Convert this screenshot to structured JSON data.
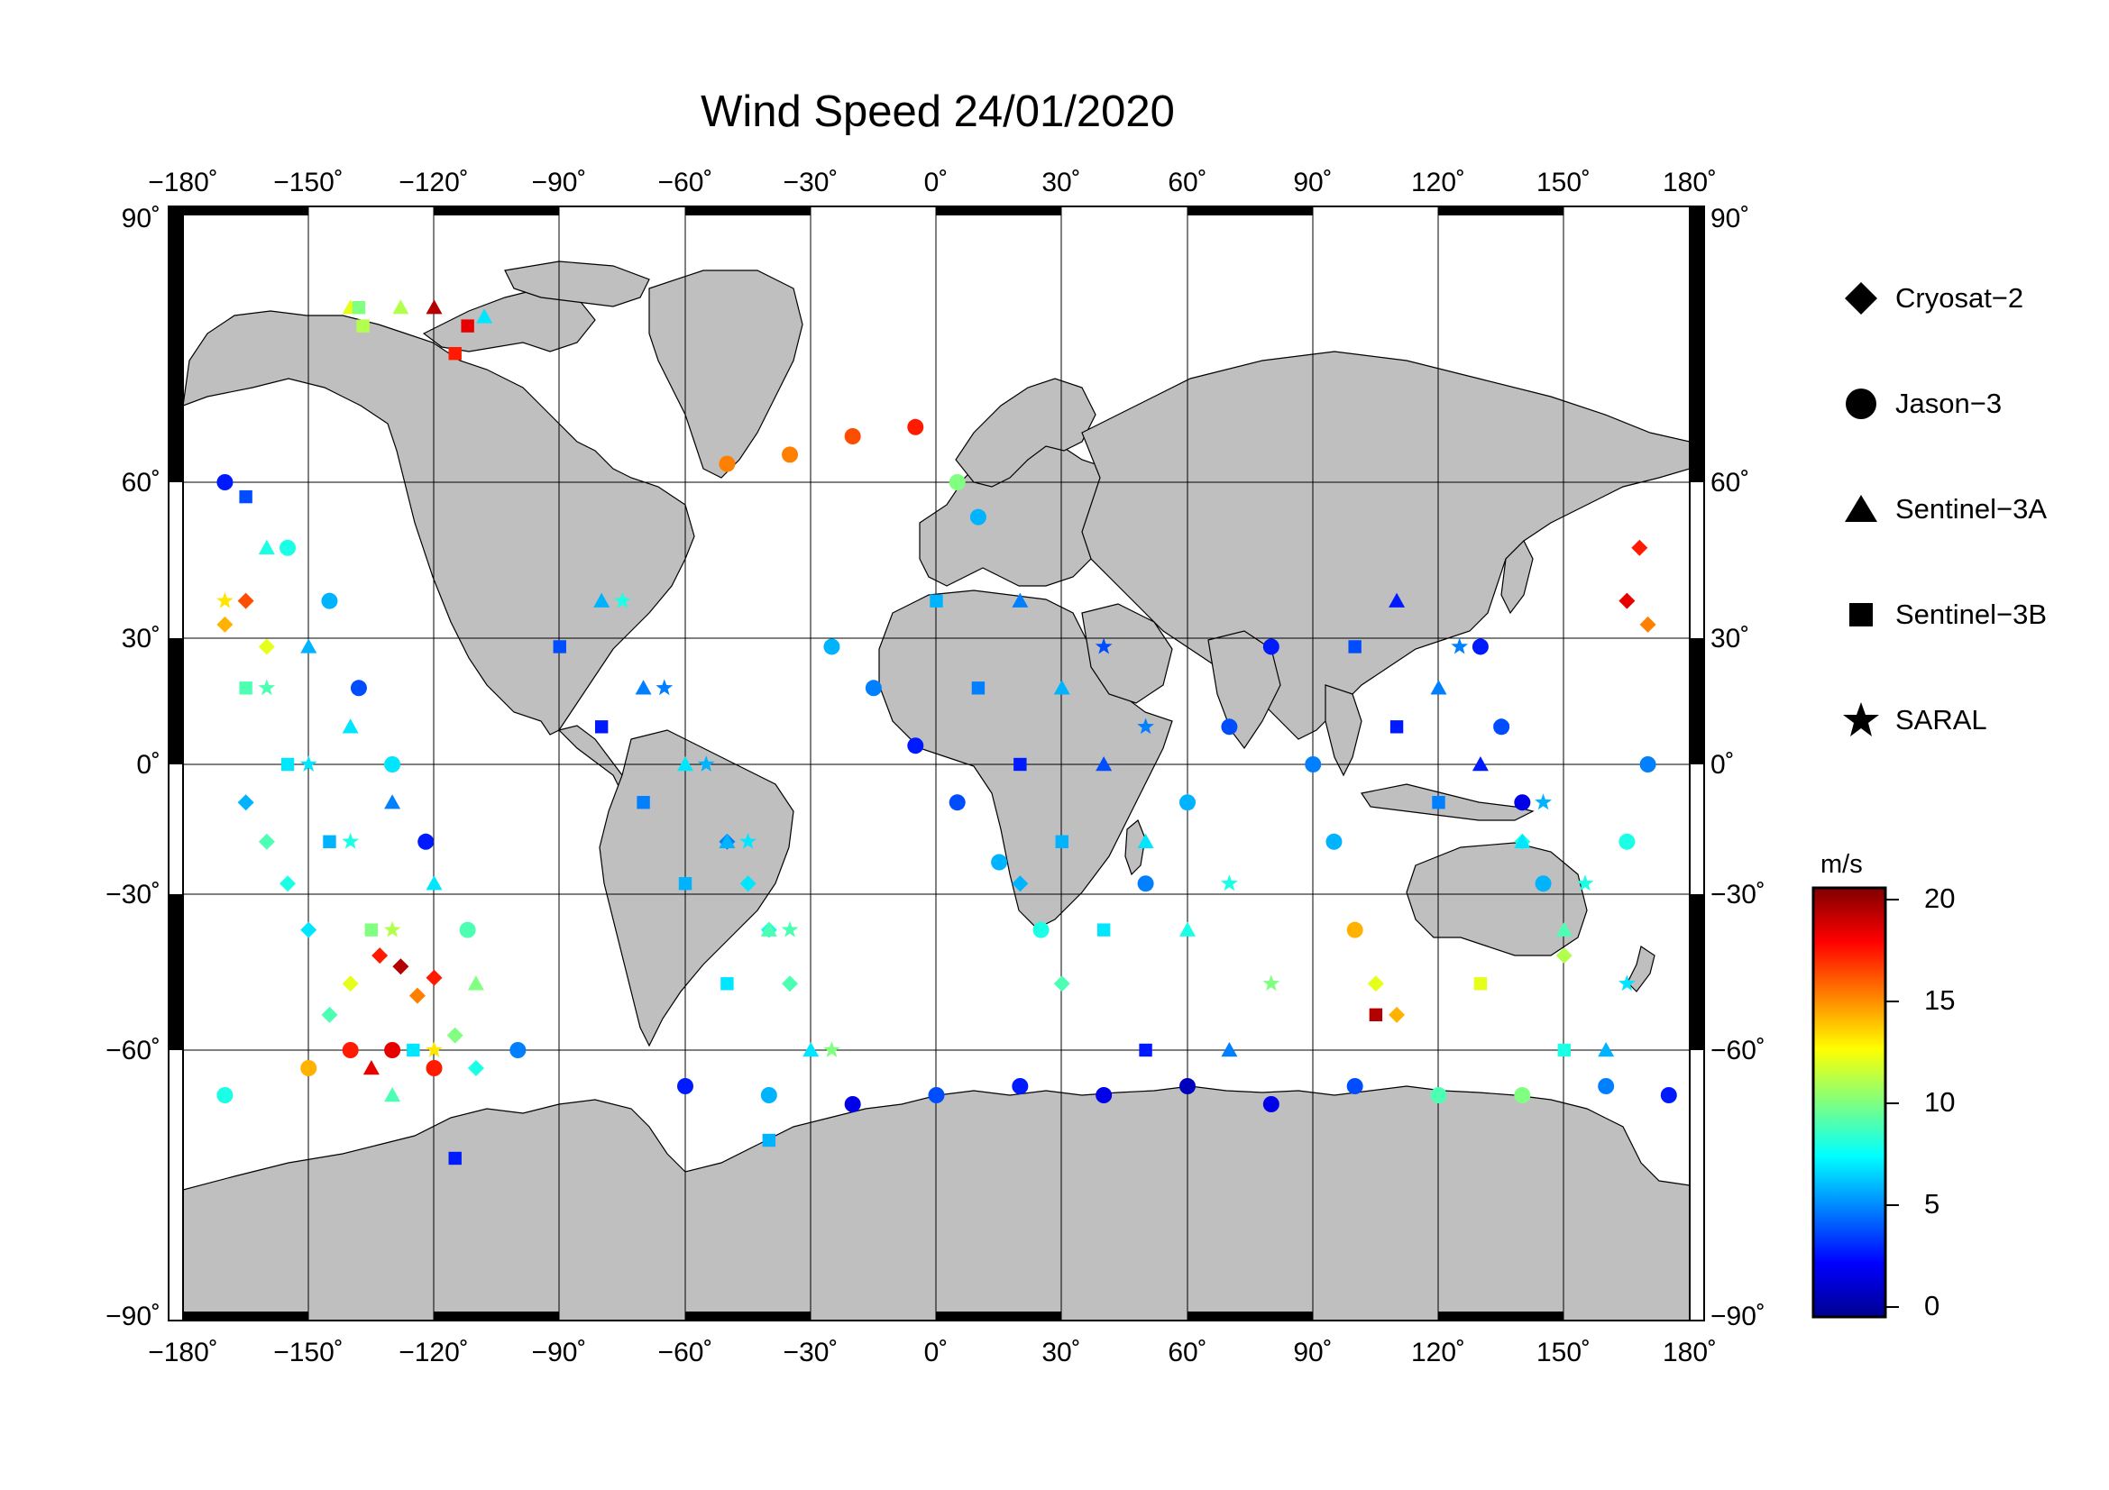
{
  "map": {
    "title": "Wind Speed 24/01/2020",
    "lon_ticks": [
      "−180˚",
      "−150˚",
      "−120˚",
      "−90˚",
      "−60˚",
      "−30˚",
      "0˚",
      "30˚",
      "60˚",
      "90˚",
      "120˚",
      "150˚",
      "180˚"
    ],
    "lat_ticks_left": [
      "90˚",
      "60˚",
      "30˚",
      "0˚",
      "−30˚",
      "−60˚",
      "−90˚"
    ],
    "lat_ticks_right": [
      "90˚",
      "60˚",
      "30˚",
      "0˚",
      "−30˚",
      "−60˚",
      "−90˚"
    ],
    "land_color": "#bfbfbf",
    "ocean_color": "#ffffff",
    "lon_range": [
      -180,
      180
    ],
    "lat_range": [
      -90,
      90
    ]
  },
  "legend": {
    "items": [
      {
        "label": "Cryosat−2",
        "marker": "diamond-icon"
      },
      {
        "label": "Jason−3",
        "marker": "circle-icon"
      },
      {
        "label": "Sentinel−3A",
        "marker": "triangle-icon"
      },
      {
        "label": "Sentinel−3B",
        "marker": "square-icon"
      },
      {
        "label": "SARAL",
        "marker": "star-icon"
      }
    ]
  },
  "colorbar": {
    "unit": "m/s",
    "ticks": [
      "20",
      "15",
      "10",
      "5",
      "0"
    ],
    "range": [
      0,
      20
    ],
    "colormap": [
      "#00008f",
      "#0000ff",
      "#00ffff",
      "#ffff00",
      "#ff0000",
      "#800000"
    ]
  },
  "chart_data": {
    "type": "scatter",
    "title": "Wind Speed 24/01/2020",
    "xlabel": "",
    "ylabel": "",
    "xlim": [
      -180,
      180
    ],
    "ylim": [
      -90,
      90
    ],
    "value_unit": "m/s",
    "grid": true,
    "legend_position": "right",
    "series": [
      {
        "name": "Cryosat−2",
        "marker": "diamond",
        "points": [
          [
            -133,
            -45,
            17
          ],
          [
            -128,
            -47,
            19
          ],
          [
            -124,
            -52,
            15
          ],
          [
            -120,
            -49,
            17
          ],
          [
            -115,
            -58,
            10
          ],
          [
            -110,
            -62,
            8
          ],
          [
            -140,
            -50,
            12
          ],
          [
            -145,
            -55,
            9
          ],
          [
            -150,
            -40,
            7
          ],
          [
            -155,
            -30,
            8
          ],
          [
            -160,
            -20,
            9
          ],
          [
            -165,
            -10,
            6
          ],
          [
            -170,
            35,
            14
          ],
          [
            -165,
            40,
            16
          ],
          [
            -160,
            30,
            12
          ],
          [
            165,
            40,
            18
          ],
          [
            168,
            50,
            17
          ],
          [
            170,
            35,
            15
          ],
          [
            -50,
            -20,
            5
          ],
          [
            -45,
            -30,
            7
          ],
          [
            -40,
            -40,
            8
          ],
          [
            -35,
            -50,
            9
          ],
          [
            20,
            -30,
            6
          ],
          [
            25,
            -40,
            8
          ],
          [
            30,
            -50,
            9
          ],
          [
            100,
            -40,
            7
          ],
          [
            105,
            -50,
            12
          ],
          [
            110,
            -55,
            14
          ],
          [
            140,
            -20,
            8
          ],
          [
            145,
            -30,
            10
          ],
          [
            150,
            -45,
            11
          ]
        ]
      },
      {
        "name": "Jason−3",
        "marker": "circle",
        "points": [
          [
            -170,
            60,
            3
          ],
          [
            -155,
            50,
            8
          ],
          [
            -145,
            40,
            6
          ],
          [
            -138,
            20,
            4
          ],
          [
            -130,
            0,
            7
          ],
          [
            -122,
            -20,
            3
          ],
          [
            -112,
            -40,
            9
          ],
          [
            -100,
            -60,
            5
          ],
          [
            -60,
            -64,
            3
          ],
          [
            -40,
            -65,
            6
          ],
          [
            -20,
            -66,
            2
          ],
          [
            0,
            -65,
            4
          ],
          [
            20,
            -64,
            3
          ],
          [
            40,
            -65,
            2
          ],
          [
            60,
            -64,
            1
          ],
          [
            80,
            -66,
            2
          ],
          [
            100,
            -64,
            4
          ],
          [
            120,
            -65,
            9
          ],
          [
            140,
            -65,
            10
          ],
          [
            160,
            -64,
            5
          ],
          [
            175,
            -65,
            3
          ],
          [
            -170,
            -65,
            8
          ],
          [
            -150,
            -62,
            14
          ],
          [
            -140,
            -60,
            17
          ],
          [
            -130,
            -60,
            18
          ],
          [
            -120,
            -62,
            17
          ],
          [
            -50,
            62,
            15
          ],
          [
            -35,
            63,
            15
          ],
          [
            -20,
            65,
            16
          ],
          [
            -5,
            66,
            17
          ],
          [
            5,
            60,
            10
          ],
          [
            10,
            55,
            6
          ],
          [
            -25,
            30,
            6
          ],
          [
            -15,
            20,
            5
          ],
          [
            -5,
            5,
            3
          ],
          [
            5,
            -10,
            4
          ],
          [
            15,
            -25,
            6
          ],
          [
            25,
            -40,
            8
          ],
          [
            50,
            -30,
            5
          ],
          [
            60,
            -10,
            6
          ],
          [
            70,
            10,
            4
          ],
          [
            80,
            30,
            3
          ],
          [
            90,
            0,
            5
          ],
          [
            95,
            -20,
            6
          ],
          [
            100,
            -40,
            14
          ],
          [
            130,
            30,
            3
          ],
          [
            135,
            10,
            4
          ],
          [
            140,
            -10,
            2
          ],
          [
            145,
            -30,
            6
          ],
          [
            165,
            -20,
            8
          ],
          [
            170,
            0,
            5
          ]
        ]
      },
      {
        "name": "Sentinel−3A",
        "marker": "triangle",
        "points": [
          [
            -140,
            79,
            12
          ],
          [
            -128,
            79,
            11
          ],
          [
            -120,
            79,
            19
          ],
          [
            -108,
            78,
            7
          ],
          [
            -135,
            -62,
            18
          ],
          [
            -130,
            -65,
            9
          ],
          [
            -160,
            50,
            8
          ],
          [
            -150,
            30,
            6
          ],
          [
            -140,
            10,
            7
          ],
          [
            -130,
            -10,
            5
          ],
          [
            -120,
            -30,
            7
          ],
          [
            -110,
            -50,
            10
          ],
          [
            -80,
            40,
            6
          ],
          [
            -70,
            20,
            5
          ],
          [
            -60,
            0,
            7
          ],
          [
            -50,
            -20,
            6
          ],
          [
            -40,
            -40,
            9
          ],
          [
            -30,
            -60,
            7
          ],
          [
            20,
            40,
            5
          ],
          [
            30,
            20,
            6
          ],
          [
            40,
            0,
            4
          ],
          [
            50,
            -20,
            7
          ],
          [
            60,
            -40,
            8
          ],
          [
            70,
            -60,
            5
          ],
          [
            110,
            40,
            3
          ],
          [
            120,
            20,
            5
          ],
          [
            130,
            0,
            3
          ],
          [
            140,
            -20,
            7
          ],
          [
            150,
            -40,
            9
          ],
          [
            160,
            -60,
            6
          ]
        ]
      },
      {
        "name": "Sentinel−3B",
        "marker": "square",
        "points": [
          [
            -138,
            79,
            10
          ],
          [
            -137,
            77,
            11
          ],
          [
            -112,
            77,
            18
          ],
          [
            -115,
            74,
            17
          ],
          [
            -165,
            58,
            4
          ],
          [
            -165,
            20,
            9
          ],
          [
            -155,
            0,
            7
          ],
          [
            -145,
            -20,
            6
          ],
          [
            -135,
            -40,
            10
          ],
          [
            -125,
            -60,
            7
          ],
          [
            -115,
            -72,
            3
          ],
          [
            -90,
            30,
            4
          ],
          [
            -80,
            10,
            3
          ],
          [
            -70,
            -10,
            5
          ],
          [
            -60,
            -30,
            6
          ],
          [
            -50,
            -50,
            7
          ],
          [
            -40,
            -70,
            6
          ],
          [
            0,
            40,
            6
          ],
          [
            10,
            20,
            5
          ],
          [
            20,
            0,
            3
          ],
          [
            30,
            -20,
            6
          ],
          [
            40,
            -40,
            7
          ],
          [
            50,
            -60,
            3
          ],
          [
            100,
            30,
            4
          ],
          [
            110,
            10,
            3
          ],
          [
            120,
            -10,
            5
          ],
          [
            105,
            -55,
            19
          ],
          [
            130,
            -50,
            12
          ],
          [
            150,
            -60,
            8
          ]
        ]
      },
      {
        "name": "SARAL",
        "marker": "star",
        "points": [
          [
            -170,
            40,
            13
          ],
          [
            -160,
            20,
            9
          ],
          [
            -150,
            0,
            7
          ],
          [
            -140,
            -20,
            8
          ],
          [
            -130,
            -40,
            11
          ],
          [
            -120,
            -60,
            13
          ],
          [
            -75,
            40,
            8
          ],
          [
            -65,
            20,
            5
          ],
          [
            -55,
            0,
            6
          ],
          [
            -45,
            -20,
            7
          ],
          [
            -35,
            -40,
            9
          ],
          [
            -25,
            -60,
            10
          ],
          [
            40,
            30,
            4
          ],
          [
            50,
            10,
            5
          ],
          [
            60,
            -10,
            6
          ],
          [
            70,
            -30,
            8
          ],
          [
            80,
            -50,
            10
          ],
          [
            125,
            30,
            5
          ],
          [
            135,
            10,
            4
          ],
          [
            145,
            -10,
            6
          ],
          [
            155,
            -30,
            8
          ],
          [
            165,
            -50,
            7
          ]
        ]
      }
    ]
  }
}
